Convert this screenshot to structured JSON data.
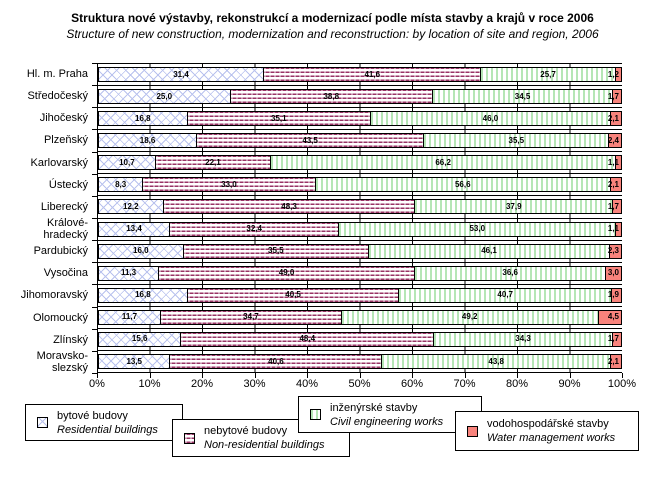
{
  "title": "Struktura nové výstavby, rekonstrukcí a modernizací podle místa stavby a krajů v roce 2006",
  "subtitle": "Structure of new construction, modernization and reconstruction: by location of site and region, 2006",
  "chart_data": {
    "type": "bar",
    "orientation": "horizontal",
    "stacked": true,
    "unit": "%",
    "value_label_format": "decimal-comma-one-place",
    "categories": [
      "Hl. m. Praha",
      "Středočeský",
      "Jihočeský",
      "Plzeňský",
      "Karlovarský",
      "Ústecký",
      "Liberecký",
      "Královéhradecký",
      "Pardubický",
      "Vysočina",
      "Jihomoravský",
      "Olomoucký",
      "Zlínský",
      "Moravskoslezský"
    ],
    "category_label_lines": [
      [
        "Hl. m. Praha"
      ],
      [
        "Středočeský"
      ],
      [
        "Jihočeský"
      ],
      [
        "Plzeňský"
      ],
      [
        "Karlovarský"
      ],
      [
        "Ústecký"
      ],
      [
        "Liberecký"
      ],
      [
        "Králové-",
        "hradecký"
      ],
      [
        "Pardubický"
      ],
      [
        "Vysočina"
      ],
      [
        "Jihomoravský"
      ],
      [
        "Olomoucký"
      ],
      [
        "Zlínský"
      ],
      [
        "Moravsko-",
        "slezský"
      ]
    ],
    "series": [
      {
        "name_cs": "bytové budovy",
        "name_en": "Residential buildings",
        "pattern": "blue-diagonal-crosshatch",
        "color": "#b9c2ee",
        "values": [
          31.4,
          25.0,
          16.8,
          18.6,
          10.7,
          8.3,
          12.2,
          13.4,
          16.0,
          11.3,
          16.8,
          11.7,
          15.6,
          13.5
        ]
      },
      {
        "name_cs": "nebytové budovy",
        "name_en": "Non-residential buildings",
        "pattern": "maroon-waves",
        "color": "#993366",
        "values": [
          41.6,
          38.8,
          35.1,
          43.5,
          22.1,
          33.0,
          48.3,
          32.4,
          35.5,
          49.0,
          40.5,
          34.7,
          48.4,
          40.6
        ]
      },
      {
        "name_cs": "inženýrské stavby",
        "name_en": "Civil engineering works",
        "pattern": "green-vertical-stripes",
        "color": "#b5e6b5",
        "values": [
          25.7,
          34.5,
          46.0,
          35.5,
          66.2,
          56.6,
          37.9,
          53.0,
          46.1,
          36.6,
          40.7,
          49.2,
          34.3,
          43.8
        ]
      },
      {
        "name_cs": "vodohospodářské stavby",
        "name_en": "Water management works",
        "pattern": "solid-salmon",
        "color": "#f8837c",
        "values": [
          1.2,
          1.7,
          2.1,
          2.4,
          1.1,
          2.1,
          1.7,
          1.1,
          2.3,
          3.0,
          1.9,
          4.5,
          1.7,
          2.1
        ]
      }
    ],
    "x_axis": {
      "min": 0,
      "max": 100,
      "tick_labels": [
        "0%",
        "10%",
        "20%",
        "30%",
        "40%",
        "50%",
        "60%",
        "70%",
        "80%",
        "90%",
        "100%"
      ],
      "grid": true
    },
    "legend_position": "bottom"
  }
}
